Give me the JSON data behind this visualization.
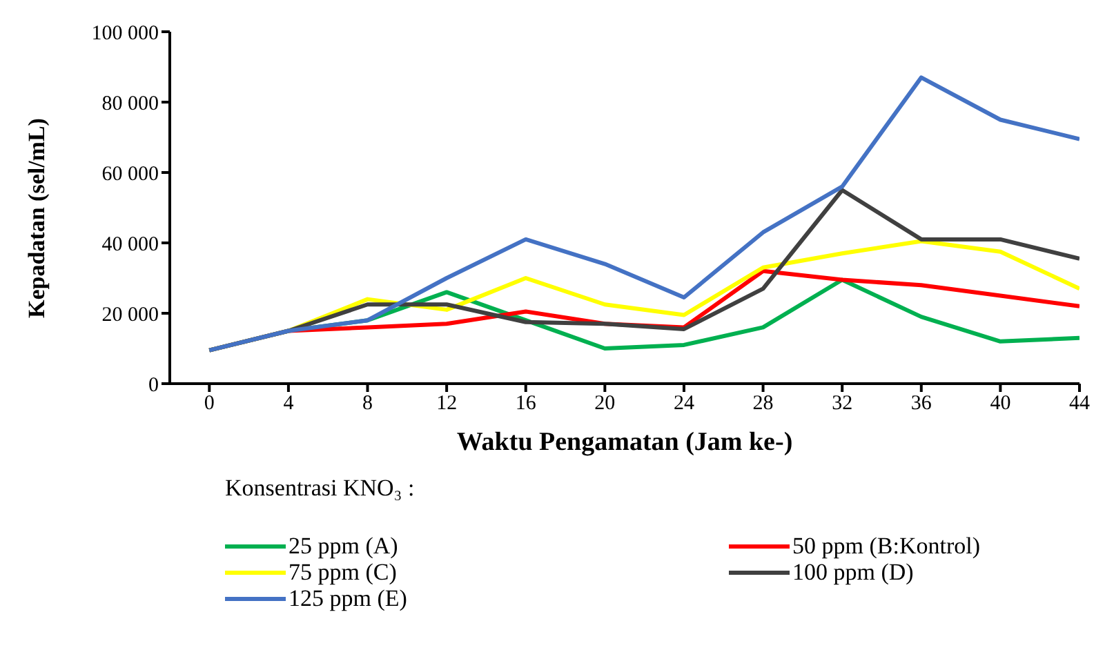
{
  "chart_data": {
    "type": "line",
    "xlabel": "Waktu Pengamatan (Jam ke-)",
    "ylabel": "Kepadatan (sel/mL)",
    "legend_title": "Konsentrasi KNO₃ :",
    "legend": "bottom",
    "grid": false,
    "marker": "none",
    "line_style": "solid",
    "x": [
      0,
      4,
      8,
      12,
      16,
      20,
      24,
      28,
      32,
      36,
      40,
      44
    ],
    "xlim": [
      -2,
      44
    ],
    "xticks": [
      0,
      4,
      8,
      12,
      16,
      20,
      24,
      28,
      32,
      36,
      40,
      44
    ],
    "ylim": [
      0,
      100000
    ],
    "yticks": [
      0,
      {
        "value": 20000,
        "label": "20 000"
      },
      {
        "value": 40000,
        "label": "40 000"
      },
      {
        "value": 60000,
        "label": "60 000"
      },
      {
        "value": 80000,
        "label": "80 000"
      },
      {
        "value": 100000,
        "label": "100 000"
      }
    ],
    "series": [
      {
        "name": "25 ppm (A)",
        "color": "#00b050",
        "values": [
          9500,
          15000,
          18000,
          26000,
          18000,
          10000,
          11000,
          16000,
          29500,
          19000,
          12000,
          13000
        ]
      },
      {
        "name": "50 ppm (B:Kontrol)",
        "color": "#ff0000",
        "values": [
          9500,
          15000,
          16000,
          17000,
          20500,
          17000,
          16000,
          32000,
          29500,
          28000,
          25000,
          22000
        ]
      },
      {
        "name": "75 ppm (C)",
        "color": "#ffff00",
        "values": [
          9500,
          15000,
          24000,
          21000,
          30000,
          22500,
          19500,
          33000,
          37000,
          40500,
          37500,
          27000
        ]
      },
      {
        "name": "100 ppm (D)",
        "color": "#404040",
        "values": [
          9500,
          15000,
          22500,
          22500,
          17500,
          17000,
          15500,
          27000,
          55000,
          41000,
          41000,
          35500
        ]
      },
      {
        "name": "125 ppm (E)",
        "color": "#4472c4",
        "values": [
          9500,
          15000,
          18000,
          30000,
          41000,
          34000,
          24500,
          43000,
          56000,
          87000,
          75000,
          69500
        ]
      }
    ]
  }
}
